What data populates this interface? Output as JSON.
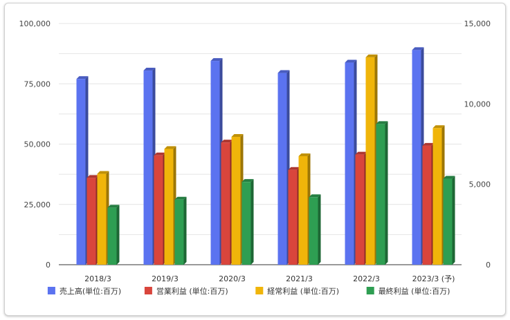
{
  "chart_data": {
    "type": "bar",
    "title": "",
    "categories": [
      "2018/3",
      "2019/3",
      "2020/3",
      "2021/3",
      "2022/3",
      "2023/3 (予)"
    ],
    "series": [
      {
        "name": "売上高(単位:百万)",
        "axis": "left",
        "color": "#5b73f0",
        "values": [
          77000,
          80500,
          84500,
          79500,
          83800,
          89000
        ]
      },
      {
        "name": "営業利益 (単位:百万)",
        "axis": "right",
        "color": "#d9453c",
        "values": [
          5400,
          6800,
          7600,
          5900,
          6850,
          7400
        ]
      },
      {
        "name": "経常利益 (単位:百万)",
        "axis": "right",
        "color": "#f0b50a",
        "values": [
          5650,
          7200,
          7950,
          6750,
          12900,
          8500
        ]
      },
      {
        "name": "最終利益 (単位:百万)",
        "axis": "right",
        "color": "#2e9e52",
        "values": [
          3550,
          4050,
          5150,
          4200,
          8750,
          5350
        ]
      }
    ],
    "y_left": {
      "min": 0,
      "max": 100000,
      "ticks": [
        0,
        25000,
        50000,
        75000,
        100000
      ],
      "tick_labels": [
        "0",
        "25,000",
        "50,000",
        "75,000",
        "100,000"
      ]
    },
    "y_right": {
      "min": 0,
      "max": 15000,
      "ticks": [
        0,
        5000,
        10000,
        15000
      ],
      "tick_labels": [
        "0",
        "5,000",
        "10,000",
        "15,000"
      ]
    },
    "grid": true,
    "legend_position": "bottom"
  }
}
